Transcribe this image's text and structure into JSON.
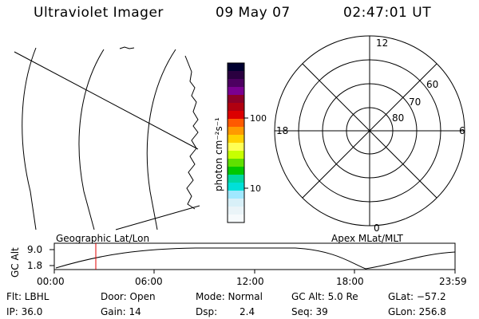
{
  "header": {
    "instrument": "Ultraviolet Imager",
    "date": "09 May 07",
    "time": "02:47:01 UT"
  },
  "colorbar": {
    "unit_label": "photon cm⁻²s⁻¹",
    "tick_100": "100",
    "tick_10": "10",
    "colors": [
      "#000030",
      "#2a0040",
      "#4c0060",
      "#7a0090",
      "#8d0028",
      "#b00010",
      "#dc0000",
      "#ff5a00",
      "#ff9a00",
      "#ffd200",
      "#ffff55",
      "#c8ff00",
      "#60e000",
      "#00c800",
      "#00d8a0",
      "#00e0d8",
      "#a0e8ff",
      "#d8f0f8",
      "#eaf4f8",
      "#f6fafc"
    ]
  },
  "polar": {
    "mlt_12": "12",
    "mlt_18": "18",
    "mlt_6": "6",
    "mlt_0": "0",
    "lat_60": "60",
    "lat_70": "70",
    "lat_80": "80"
  },
  "timeline": {
    "left_title": "Geographic Lat/Lon",
    "right_title": "Apex MLat/MLT",
    "y_axis_label": "GC Alt",
    "y_tick_top": "9.0",
    "y_tick_bottom": "1.8",
    "x_ticks": [
      "00:00",
      "06:00",
      "12:00",
      "18:00",
      "23:59"
    ]
  },
  "status": {
    "filter": "Flt: LBHL",
    "ip": "IP: 36.0",
    "door": "Door: Open",
    "gain": "Gain: 14",
    "mode": "Mode: Normal",
    "dsp_label": "Dsp:",
    "dsp_value": "2.4",
    "gc_alt": "GC Alt: 5.0 Re",
    "seq": "Seq: 39",
    "glat": "GLat: −57.2",
    "glon": "GLon: 256.8"
  }
}
